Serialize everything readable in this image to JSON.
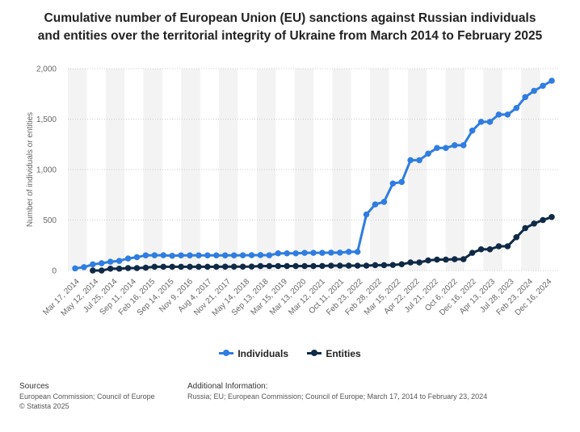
{
  "title_lines": [
    "Cumulative number of European Union (EU) sanctions against Russian individuals",
    "and entities over the territorial integrity of Ukraine from March 2014 to February 2025"
  ],
  "colors": {
    "individuals": "#2f7de1",
    "entities": "#0f2a47",
    "grid": "#cccccc",
    "band": "#f3f3f3"
  },
  "legend": {
    "individuals": "Individuals",
    "entities": "Entities"
  },
  "footer": {
    "sources_title": "Sources",
    "sources_lines": [
      "European Commission; Council of Europe",
      "© Statista 2025"
    ],
    "additional_title": "Additional Information:",
    "additional_text": "Russia; EU; European Commission; Council of Europe; March 17, 2014 to February 23, 2024"
  },
  "chart_data": {
    "type": "line",
    "title": "Cumulative number of European Union (EU) sanctions against Russian individuals and entities over the territorial integrity of Ukraine from March 2014 to February 2025",
    "ylabel": "Number of individuals or entities",
    "xlabel": "",
    "ylim": [
      0,
      2000
    ],
    "yticks": [
      0,
      500,
      1000,
      1500,
      2000
    ],
    "ytick_labels": [
      "0",
      "500",
      "1,000",
      "1,500",
      "2,000"
    ],
    "grid": true,
    "legend_position": "bottom",
    "x_tick_labels": [
      "Mar 17, 2014",
      "May 12, 2014",
      "Jul 25, 2014",
      "Sep 11, 2014",
      "Feb 16, 2015",
      "Sep 14, 2015",
      "Nov 9, 2016",
      "Aug 4, 2017",
      "Nov 21, 2017",
      "May 14, 2018",
      "Sep 13, 2018",
      "Mar 15, 2019",
      "Mar 13, 2020",
      "Mar 12, 2021",
      "Oct 11, 2021",
      "Feb 23, 2022",
      "Feb 28, 2022",
      "Mar 15, 2022",
      "Apr 22, 2022",
      "Jul 21, 2022",
      "Oct 6, 2022",
      "Dec 16, 2022",
      "Apr 13, 2023",
      "Jul 28, 2023",
      "Feb 23, 2024",
      "Dec 16, 2024"
    ],
    "series": [
      {
        "name": "Individuals",
        "values": [
          21,
          33,
          61,
          72,
          87,
          95,
          119,
          132,
          150,
          151,
          151,
          146,
          150,
          150,
          150,
          150,
          150,
          150,
          150,
          151,
          152,
          153,
          151,
          170,
          170,
          170,
          175,
          175,
          175,
          177,
          177,
          185,
          185,
          555,
          655,
          680,
          862,
          877,
          1093,
          1093,
          1158,
          1214,
          1214,
          1241,
          1241,
          1386,
          1473,
          1473,
          1545,
          1545,
          1610,
          1718,
          1780,
          1830,
          1880
        ]
      },
      {
        "name": "Entities",
        "values": [
          null,
          null,
          0,
          0,
          18,
          18,
          24,
          24,
          28,
          37,
          37,
          37,
          37,
          37,
          37,
          37,
          37,
          38,
          38,
          38,
          39,
          44,
          44,
          44,
          44,
          44,
          44,
          44,
          45,
          48,
          48,
          48,
          48,
          48,
          53,
          53,
          55,
          62,
          80,
          80,
          100,
          108,
          108,
          112,
          112,
          175,
          210,
          210,
          240,
          240,
          330,
          420,
          465,
          500,
          530
        ]
      }
    ]
  }
}
